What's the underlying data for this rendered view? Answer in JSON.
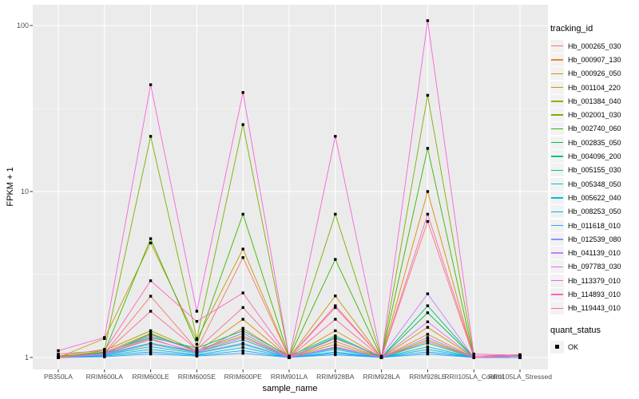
{
  "figure": {
    "ylabel": "FPKM + 1",
    "xlabel": "sample_name",
    "legend_title": "tracking_id",
    "quant_title": "quant_status",
    "quant_ok_label": "OK",
    "panel_bg": "#EBEBEB",
    "grid_color": "#FFFFFF",
    "tick_color": "#333333",
    "tick_label_color": "#4d4d4d",
    "point_color": "#000000",
    "legend_key_bg": "#F2F2F2"
  },
  "chart_data": {
    "type": "line",
    "title": "",
    "xlabel": "sample_name",
    "ylabel": "FPKM + 1",
    "y_scale": "log10",
    "ylim": [
      0.85,
      133
    ],
    "y_tick_values": [
      1,
      10,
      100
    ],
    "y_tick_labels": [
      "1",
      "10",
      "100"
    ],
    "y_minor_values": [
      3.162,
      31.623
    ],
    "grid": true,
    "legend_position": "right",
    "point_marker": "filled-square",
    "quant_status": "OK",
    "categories": [
      "PB350LA",
      "RRIM600LA",
      "RRIM600LE",
      "RRIM600SE",
      "RRIM600PE",
      "RRIM901LA",
      "RRIM928BA",
      "RRIM928LA",
      "RRIM928LE",
      "RRII105LA_Control",
      "RRII105LA_Stressed"
    ],
    "series": [
      {
        "name": "Hb_000265_030",
        "color": "#F8766D",
        "values": [
          1.02,
          1.06,
          2.34,
          1.12,
          4.0,
          1.0,
          2.0,
          1.0,
          6.6,
          1.0,
          1.03
        ]
      },
      {
        "name": "Hb_000907_130",
        "color": "#EA8331",
        "values": [
          1.0,
          1.05,
          1.3,
          1.06,
          1.5,
          1.0,
          1.25,
          1.0,
          1.38,
          1.0,
          1.02
        ]
      },
      {
        "name": "Hb_000926_050",
        "color": "#D89000",
        "values": [
          1.01,
          1.07,
          1.4,
          1.08,
          1.7,
          1.0,
          1.45,
          1.0,
          10.0,
          1.0,
          1.02
        ]
      },
      {
        "name": "Hb_001104_220",
        "color": "#C49A00",
        "values": [
          1.0,
          1.3,
          4.9,
          1.28,
          4.5,
          1.0,
          2.35,
          1.0,
          1.52,
          1.0,
          1.03
        ]
      },
      {
        "name": "Hb_001384_040",
        "color": "#A3A500",
        "values": [
          1.0,
          1.1,
          1.45,
          1.1,
          1.35,
          1.0,
          1.2,
          1.0,
          1.28,
          1.0,
          1.0
        ]
      },
      {
        "name": "Hb_002001_030",
        "color": "#7CAE00",
        "values": [
          1.02,
          1.12,
          21.5,
          1.3,
          25.3,
          1.0,
          7.3,
          1.0,
          38.0,
          1.02,
          1.04
        ]
      },
      {
        "name": "Hb_002740_060",
        "color": "#39B600",
        "values": [
          1.0,
          1.08,
          5.2,
          1.2,
          7.3,
          1.0,
          3.9,
          1.0,
          18.2,
          1.0,
          1.02
        ]
      },
      {
        "name": "Hb_002835_050",
        "color": "#00BB4E",
        "values": [
          1.0,
          1.05,
          1.38,
          1.1,
          1.4,
          1.0,
          1.32,
          1.0,
          1.86,
          1.0,
          1.02
        ]
      },
      {
        "name": "Hb_004096_200",
        "color": "#00BF7D",
        "values": [
          1.0,
          1.07,
          1.32,
          1.14,
          1.45,
          1.02,
          1.35,
          1.0,
          2.05,
          1.0,
          1.03
        ]
      },
      {
        "name": "Hb_005155_030",
        "color": "#00C1A3",
        "values": [
          1.0,
          1.05,
          1.22,
          1.08,
          1.28,
          1.0,
          1.15,
          1.0,
          1.22,
          1.0,
          1.0
        ]
      },
      {
        "name": "Hb_005348_050",
        "color": "#00BFC4",
        "values": [
          1.0,
          1.04,
          1.16,
          1.06,
          1.2,
          1.0,
          1.12,
          1.0,
          1.16,
          1.0,
          1.0
        ]
      },
      {
        "name": "Hb_005622_040",
        "color": "#00BAE0",
        "values": [
          1.0,
          1.03,
          1.12,
          1.04,
          1.15,
          1.0,
          1.08,
          1.0,
          1.12,
          1.0,
          1.0
        ]
      },
      {
        "name": "Hb_008253_050",
        "color": "#00B0F6",
        "values": [
          1.0,
          1.02,
          1.08,
          1.03,
          1.1,
          1.0,
          1.06,
          1.0,
          1.08,
          1.0,
          1.0
        ]
      },
      {
        "name": "Hb_011618_010",
        "color": "#35A2FF",
        "values": [
          1.0,
          1.01,
          1.05,
          1.02,
          1.06,
          1.0,
          1.04,
          1.0,
          1.05,
          1.0,
          1.0
        ]
      },
      {
        "name": "Hb_012539_080",
        "color": "#9590FF",
        "values": [
          1.0,
          1.04,
          1.2,
          1.07,
          1.22,
          1.0,
          1.14,
          1.0,
          1.32,
          1.0,
          1.02
        ]
      },
      {
        "name": "Hb_041139_010",
        "color": "#C77CFF",
        "values": [
          1.0,
          1.06,
          1.35,
          1.1,
          1.4,
          1.0,
          1.3,
          1.02,
          2.42,
          1.0,
          1.03
        ]
      },
      {
        "name": "Hb_097783_030",
        "color": "#E76BF3",
        "values": [
          1.0,
          1.05,
          1.28,
          1.08,
          1.32,
          1.0,
          1.16,
          1.0,
          1.64,
          1.0,
          1.02
        ]
      },
      {
        "name": "Hb_113379_010",
        "color": "#FA62DB",
        "values": [
          1.1,
          1.32,
          44.0,
          1.9,
          39.5,
          1.0,
          21.5,
          1.0,
          107.0,
          1.05,
          1.03
        ]
      },
      {
        "name": "Hb_114893_010",
        "color": "#FF62BC",
        "values": [
          1.05,
          1.1,
          2.9,
          1.65,
          2.45,
          1.0,
          2.05,
          1.0,
          7.3,
          1.02,
          1.03
        ]
      },
      {
        "name": "Hb_119443_010",
        "color": "#FF6A98",
        "values": [
          1.0,
          1.06,
          1.9,
          1.12,
          2.0,
          1.0,
          1.7,
          1.0,
          1.25,
          1.0,
          1.02
        ]
      }
    ]
  }
}
